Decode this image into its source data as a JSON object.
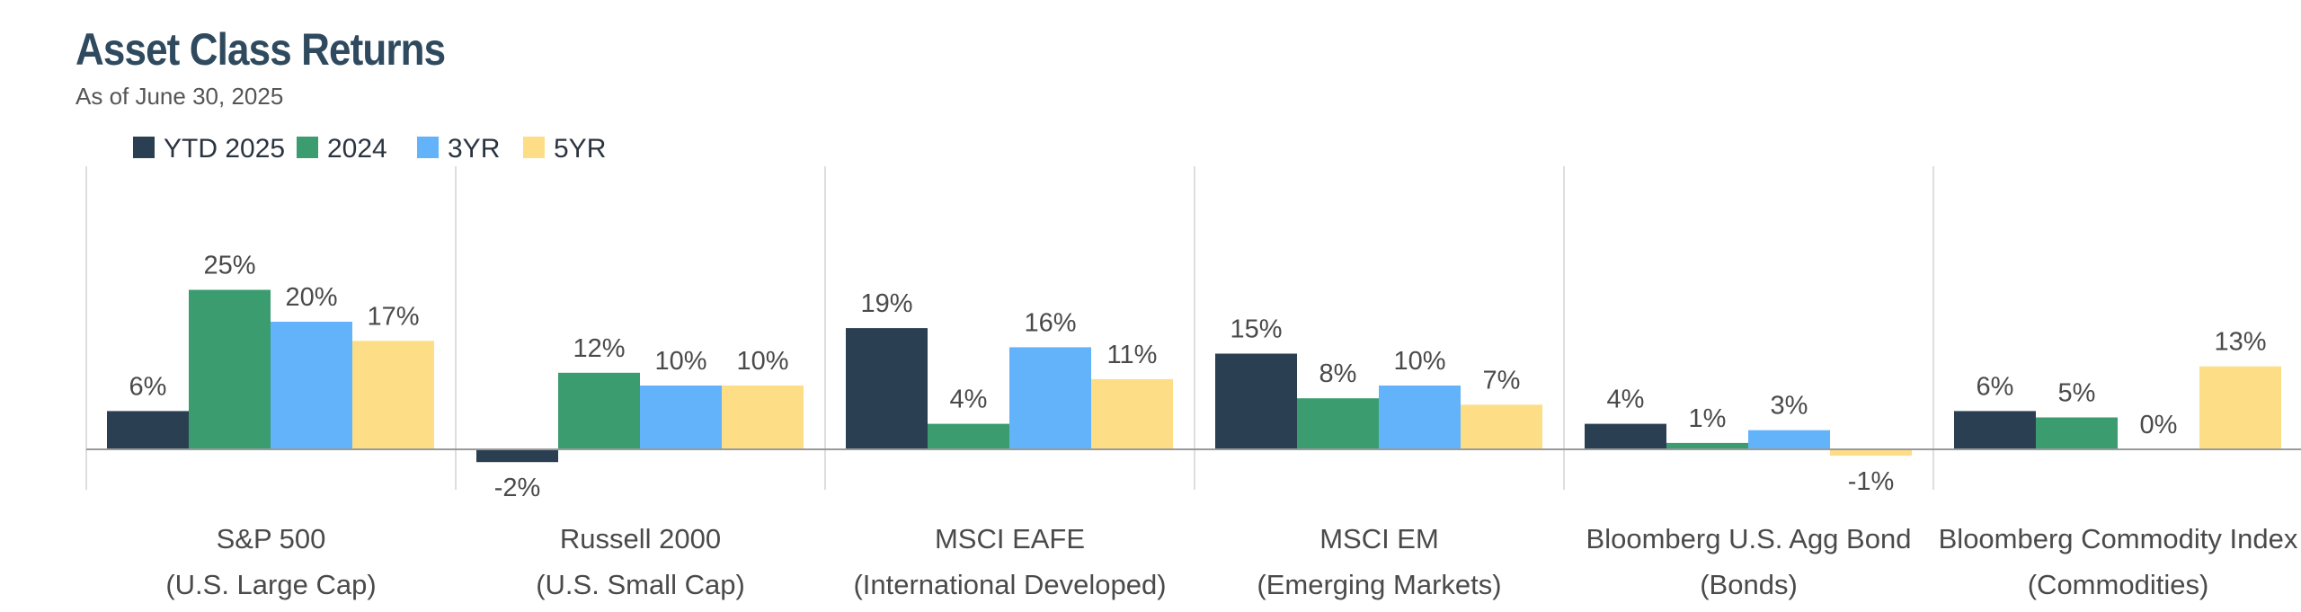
{
  "title": "Asset Class Returns",
  "subtitle": "As of June 30, 2025",
  "chart_data": {
    "type": "bar",
    "title": "Asset Class Returns",
    "subtitle": "As of June 30, 2025",
    "categories": [
      {
        "name": "S&P 500",
        "sub": "(U.S. Large Cap)"
      },
      {
        "name": "Russell 2000",
        "sub": "(U.S. Small Cap)"
      },
      {
        "name": "MSCI EAFE",
        "sub": "(International Developed)"
      },
      {
        "name": "MSCI EM",
        "sub": "(Emerging Markets)"
      },
      {
        "name": "Bloomberg U.S. Agg Bond",
        "sub": "(Bonds)"
      },
      {
        "name": "Bloomberg Commodity Index",
        "sub": "(Commodities)"
      }
    ],
    "series": [
      {
        "name": "YTD 2025",
        "color": "#2a4052",
        "values": [
          6,
          -2,
          19,
          15,
          4,
          6
        ],
        "labels": [
          "6%",
          "-2%",
          "19%",
          "15%",
          "4%",
          "6%"
        ]
      },
      {
        "name": "2024",
        "color": "#3a9c6f",
        "values": [
          25,
          12,
          4,
          8,
          1,
          5
        ],
        "labels": [
          "25%",
          "12%",
          "4%",
          "8%",
          "1%",
          "5%"
        ]
      },
      {
        "name": "3YR",
        "color": "#63b3fb",
        "values": [
          20,
          10,
          16,
          10,
          3,
          0
        ],
        "labels": [
          "20%",
          "10%",
          "16%",
          "10%",
          "3%",
          "0%"
        ]
      },
      {
        "name": "5YR",
        "color": "#fdde86",
        "values": [
          17,
          10,
          11,
          7,
          -1,
          13
        ],
        "labels": [
          "17%",
          "10%",
          "11%",
          "7%",
          "-1%",
          "13%"
        ]
      }
    ],
    "ylim": [
      -3,
      28
    ],
    "grid": false,
    "legend_position": "top-left"
  }
}
